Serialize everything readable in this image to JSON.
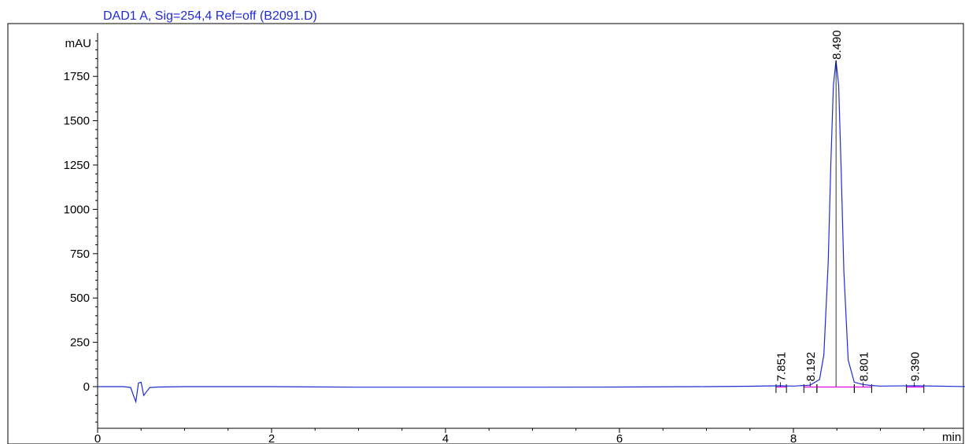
{
  "chart_data": {
    "type": "line",
    "title": "DAD1 A, Sig=254,4 Ref=off (B2091.D)",
    "xlabel": "min",
    "ylabel": "mAU",
    "xlim": [
      0,
      10
    ],
    "ylim": [
      -250,
      2000
    ],
    "x_ticks": [
      0,
      2,
      4,
      6,
      8
    ],
    "x_tick_labels": [
      "0",
      "2",
      "4",
      "6",
      "8"
    ],
    "y_ticks": [
      0,
      250,
      500,
      750,
      1000,
      1250,
      1500,
      1750
    ],
    "y_tick_labels": [
      "0",
      "250",
      "500",
      "750",
      "1000",
      "1250",
      "1500",
      "1750"
    ],
    "grid": false,
    "line_color": "#1f2bd6",
    "baseline_color": "#e800e8",
    "frame_color": "#000000",
    "series": [
      {
        "x": [
          0,
          0.3,
          0.38,
          0.42,
          0.44,
          0.47,
          0.5,
          0.53,
          0.56,
          0.6,
          0.7,
          1.0,
          2.0,
          3.0,
          4.0,
          5.0,
          6.0,
          7.0,
          7.5,
          7.85,
          8.0,
          8.19,
          8.3,
          8.35,
          8.4,
          8.43,
          8.46,
          8.49,
          8.52,
          8.55,
          8.58,
          8.63,
          8.7,
          8.8,
          8.9,
          9.0,
          9.39,
          10.0
        ],
        "y": [
          0,
          0,
          -5,
          -60,
          -85,
          20,
          25,
          -50,
          -30,
          -5,
          -2,
          0,
          0,
          -3,
          -3,
          -3,
          -2,
          0,
          2,
          5,
          3,
          8,
          40,
          180,
          700,
          1250,
          1700,
          1840,
          1700,
          1200,
          650,
          150,
          25,
          12,
          6,
          3,
          5,
          0
        ]
      }
    ],
    "peak_labels": [
      {
        "x": 7.851,
        "label": "7.851",
        "marker_height": 25
      },
      {
        "x": 8.192,
        "label": "8.192",
        "marker_height": 25
      },
      {
        "x": 8.49,
        "label": "8.490",
        "marker_height": 1840
      },
      {
        "x": 8.801,
        "label": "8.801",
        "marker_height": 25
      },
      {
        "x": 9.39,
        "label": "9.390",
        "marker_height": 25
      }
    ],
    "baseline_segments": [
      [
        7.8,
        7.92
      ],
      [
        8.12,
        8.27
      ],
      [
        8.27,
        8.7
      ],
      [
        8.7,
        8.9
      ],
      [
        9.3,
        9.5
      ]
    ]
  }
}
